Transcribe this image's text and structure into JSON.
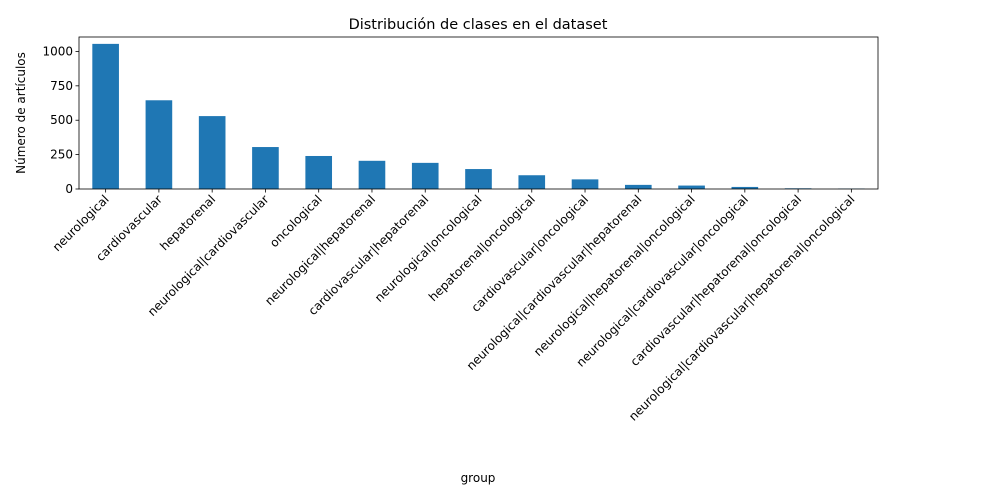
{
  "chart_data": {
    "type": "bar",
    "title": "Distribución de clases en el dataset",
    "xlabel": "group",
    "ylabel": "Número de artículos",
    "categories": [
      "neurological",
      "cardiovascular",
      "hepatorenal",
      "neurological|cardiovascular",
      "oncological",
      "neurological|hepatorenal",
      "cardiovascular|hepatorenal",
      "neurological|oncological",
      "hepatorenal|oncological",
      "cardiovascular|oncological",
      "neurological|cardiovascular|hepatorenal",
      "neurological|hepatorenal|oncological",
      "neurological|cardiovascular|oncological",
      "cardiovascular|hepatorenal|oncological",
      "neurological|cardiovascular|hepatorenal|oncological"
    ],
    "values": [
      1055,
      645,
      530,
      305,
      240,
      205,
      190,
      145,
      100,
      70,
      30,
      25,
      15,
      5,
      3
    ],
    "ylim": [
      0,
      1105
    ],
    "yticks": [
      0,
      250,
      500,
      750,
      1000
    ],
    "bar_color": "#1f77b4",
    "grid": false,
    "legend": "none"
  }
}
